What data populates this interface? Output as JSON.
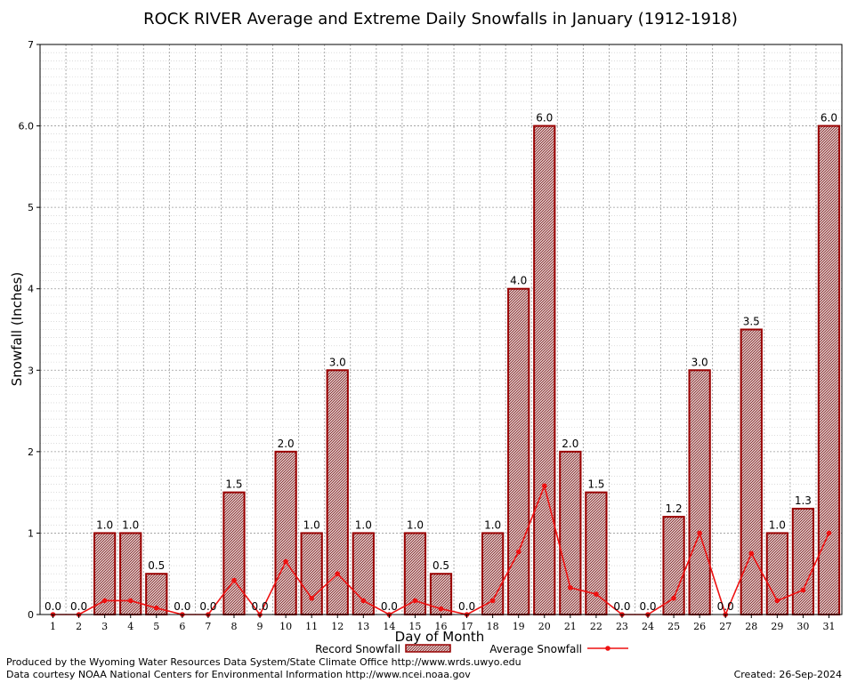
{
  "colors": {
    "bar_fill": "#d8b8b8",
    "bar_hatch": "#8b3a3a",
    "bar_stroke": "#990000",
    "line": "#ee1111",
    "grid": "#9a9a9a",
    "grid_minor": "#c8c8c8"
  },
  "chart_data": {
    "type": "bar",
    "title": "ROCK RIVER Average and Extreme Daily Snowfalls in January (1912-1918)",
    "xlabel": "Day of Month",
    "ylabel": "Snowfall (Inches)",
    "ylim": [
      0,
      7
    ],
    "yticks": [
      "0",
      "1",
      "2",
      "3",
      "4",
      "5",
      "6.0",
      "7"
    ],
    "categories": [
      "1",
      "2",
      "3",
      "4",
      "5",
      "6",
      "7",
      "8",
      "9",
      "10",
      "11",
      "12",
      "13",
      "14",
      "15",
      "16",
      "17",
      "18",
      "19",
      "20",
      "21",
      "22",
      "23",
      "24",
      "25",
      "26",
      "27",
      "28",
      "29",
      "30",
      "31"
    ],
    "series": [
      {
        "name": "Record Snowfall",
        "kind": "bar",
        "values": [
          0.0,
          0.0,
          1.0,
          1.0,
          0.5,
          0.0,
          0.0,
          1.5,
          0.0,
          2.0,
          1.0,
          3.0,
          1.0,
          0.0,
          1.0,
          0.5,
          0.0,
          1.0,
          4.0,
          6.0,
          2.0,
          1.5,
          0.0,
          0.0,
          1.2,
          3.0,
          0.0,
          3.5,
          1.0,
          1.3,
          6.0
        ],
        "labels": [
          "0.0",
          "0.0",
          "1.0",
          "1.0",
          "0.5",
          "0.0",
          "0.0",
          "1.5",
          "0.0",
          "2.0",
          "1.0",
          "3.0",
          "1.0",
          "0.0",
          "1.0",
          "0.5",
          "0.0",
          "1.0",
          "4.0",
          "6.0",
          "2.0",
          "1.5",
          "0.0",
          "0.0",
          "1.2",
          "3.0",
          "0.0",
          "3.5",
          "1.0",
          "1.3",
          "6.0"
        ]
      },
      {
        "name": "Average Snowfall",
        "kind": "line",
        "values": [
          0.0,
          0.0,
          0.17,
          0.17,
          0.08,
          0.0,
          0.0,
          0.42,
          0.0,
          0.65,
          0.2,
          0.5,
          0.17,
          0.0,
          0.17,
          0.07,
          0.0,
          0.17,
          0.77,
          1.58,
          0.33,
          0.25,
          0.0,
          0.0,
          0.2,
          1.0,
          0.0,
          0.75,
          0.17,
          0.3,
          1.0
        ]
      }
    ],
    "legend": [
      "Record Snowfall",
      "Average Snowfall"
    ],
    "legend_position": "bottom"
  },
  "footer": {
    "produced_by": "Produced by the Wyoming Water Resources Data System/State Climate Office http://www.wrds.uwyo.edu",
    "data_courtesy": "Data courtesy NOAA National Centers for Environmental Information http://www.ncei.noaa.gov",
    "created": "Created: 26-Sep-2024"
  }
}
